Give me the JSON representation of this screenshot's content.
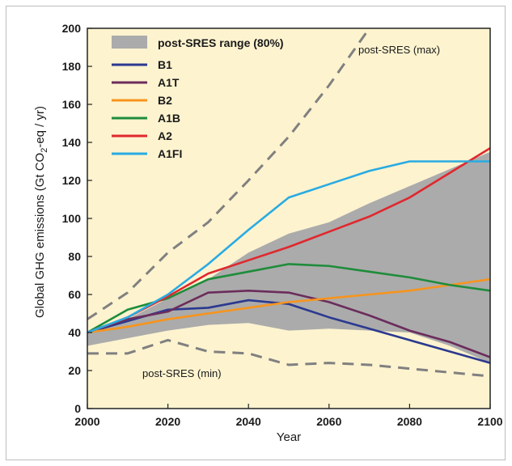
{
  "chart_data": {
    "type": "line",
    "xlabel": "Year",
    "ylabel": "Global GHG emissions (Gt CO",
    "ylabel_sub": "2",
    "ylabel_tail": "-eq / yr)",
    "xlim": [
      2000,
      2100
    ],
    "ylim": [
      0,
      200
    ],
    "x_ticks": [
      2000,
      2020,
      2040,
      2060,
      2080,
      2100
    ],
    "x_tick_labels": [
      "2000",
      "2020",
      "2040",
      "2060",
      "2080",
      "2100"
    ],
    "y_ticks": [
      0,
      20,
      40,
      60,
      80,
      100,
      120,
      140,
      160,
      180,
      200
    ],
    "y_tick_labels": [
      "0",
      "20",
      "40",
      "60",
      "80",
      "100",
      "120",
      "140",
      "160",
      "180",
      "200"
    ],
    "legend_position": "top-left",
    "background_color": "#fdf3cf",
    "range_band": {
      "name": "post-SRES range (80%)",
      "color": "#ababab",
      "x": [
        2000,
        2010,
        2020,
        2030,
        2040,
        2050,
        2060,
        2070,
        2080,
        2090,
        2100
      ],
      "lower": [
        33,
        37,
        41,
        44,
        45,
        41,
        42,
        41,
        40,
        33,
        24
      ],
      "upper": [
        40,
        47,
        58,
        68,
        82,
        92,
        98,
        108,
        117,
        126,
        135
      ]
    },
    "series": [
      {
        "name": "B1",
        "color": "#2b3990",
        "x": [
          2000,
          2010,
          2020,
          2030,
          2040,
          2050,
          2060,
          2070,
          2080,
          2090,
          2100
        ],
        "y": [
          40,
          46,
          52,
          53,
          57,
          55,
          48,
          42,
          36,
          30,
          24
        ]
      },
      {
        "name": "A1T",
        "color": "#6b2d5c",
        "x": [
          2000,
          2010,
          2020,
          2030,
          2040,
          2050,
          2060,
          2070,
          2080,
          2090,
          2100
        ],
        "y": [
          40,
          47,
          51,
          61,
          62,
          61,
          56,
          49,
          41,
          35,
          27
        ]
      },
      {
        "name": "B2",
        "color": "#f7941d",
        "x": [
          2000,
          2010,
          2020,
          2030,
          2040,
          2050,
          2060,
          2070,
          2080,
          2090,
          2100
        ],
        "y": [
          40,
          43,
          47,
          50,
          53,
          56,
          58,
          60,
          62,
          65,
          68
        ]
      },
      {
        "name": "A1B",
        "color": "#1f8c3b",
        "x": [
          2000,
          2010,
          2020,
          2030,
          2040,
          2050,
          2060,
          2070,
          2080,
          2090,
          2100
        ],
        "y": [
          40,
          52,
          58,
          68,
          72,
          76,
          75,
          72,
          69,
          65,
          62
        ]
      },
      {
        "name": "A2",
        "color": "#e0282e",
        "x": [
          2000,
          2010,
          2020,
          2030,
          2040,
          2050,
          2060,
          2070,
          2080,
          2090,
          2100
        ],
        "y": [
          40,
          48,
          59,
          71,
          78,
          85,
          93,
          101,
          111,
          124,
          137
        ]
      },
      {
        "name": "A1FI",
        "color": "#29abe2",
        "x": [
          2000,
          2010,
          2020,
          2030,
          2040,
          2050,
          2060,
          2070,
          2080,
          2090,
          2100
        ],
        "y": [
          40,
          48,
          60,
          76,
          94,
          111,
          118,
          125,
          130,
          130,
          130
        ]
      },
      {
        "name": "post-SRES (max)",
        "color": "#808080",
        "dashed": true,
        "x": [
          2000,
          2010,
          2020,
          2030,
          2040,
          2050,
          2060,
          2070
        ],
        "y": [
          47,
          61,
          82,
          98,
          120,
          143,
          170,
          200
        ]
      },
      {
        "name": "post-SRES (min)",
        "color": "#808080",
        "dashed": true,
        "x": [
          2000,
          2010,
          2020,
          2030,
          2040,
          2050,
          2060,
          2070,
          2080,
          2090,
          2100
        ],
        "y": [
          29,
          29,
          36,
          30,
          29,
          23,
          24,
          23,
          21,
          19,
          17
        ]
      }
    ],
    "annotations": [
      {
        "text": "post-SRES (max)"
      },
      {
        "text": "post-SRES (min)"
      }
    ]
  }
}
